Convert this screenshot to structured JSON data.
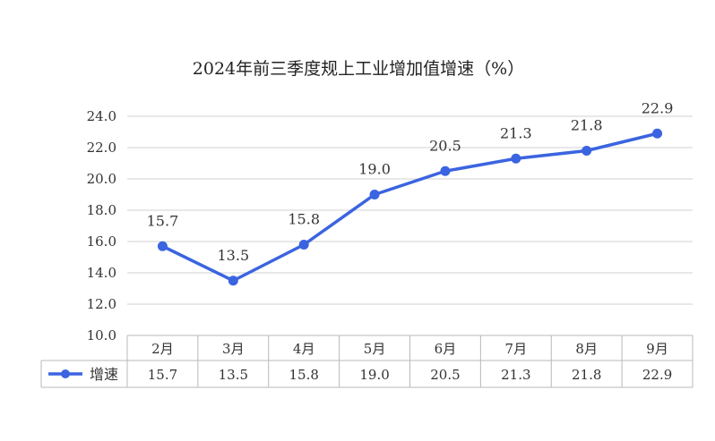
{
  "chart_data": {
    "type": "line",
    "title": "2024年前三季度规上工业增加值增速（%）",
    "categories": [
      "2月",
      "3月",
      "4月",
      "5月",
      "6月",
      "7月",
      "8月",
      "9月"
    ],
    "series": [
      {
        "name": "增速",
        "values": [
          15.7,
          13.5,
          15.8,
          19.0,
          20.5,
          21.3,
          21.8,
          22.9
        ]
      }
    ],
    "data_labels": [
      "15.7",
      "13.5",
      "15.8",
      "19.0",
      "20.5",
      "21.3",
      "21.8",
      "22.9"
    ],
    "yticks": [
      "10.0",
      "12.0",
      "14.0",
      "16.0",
      "18.0",
      "20.0",
      "22.0",
      "24.0"
    ],
    "ylim": [
      10,
      24
    ],
    "grid": true,
    "data_table": true,
    "colors": {
      "line": "#3b64e0",
      "grid": "#d0d0d0",
      "table_border": "#b8b8b8"
    }
  }
}
